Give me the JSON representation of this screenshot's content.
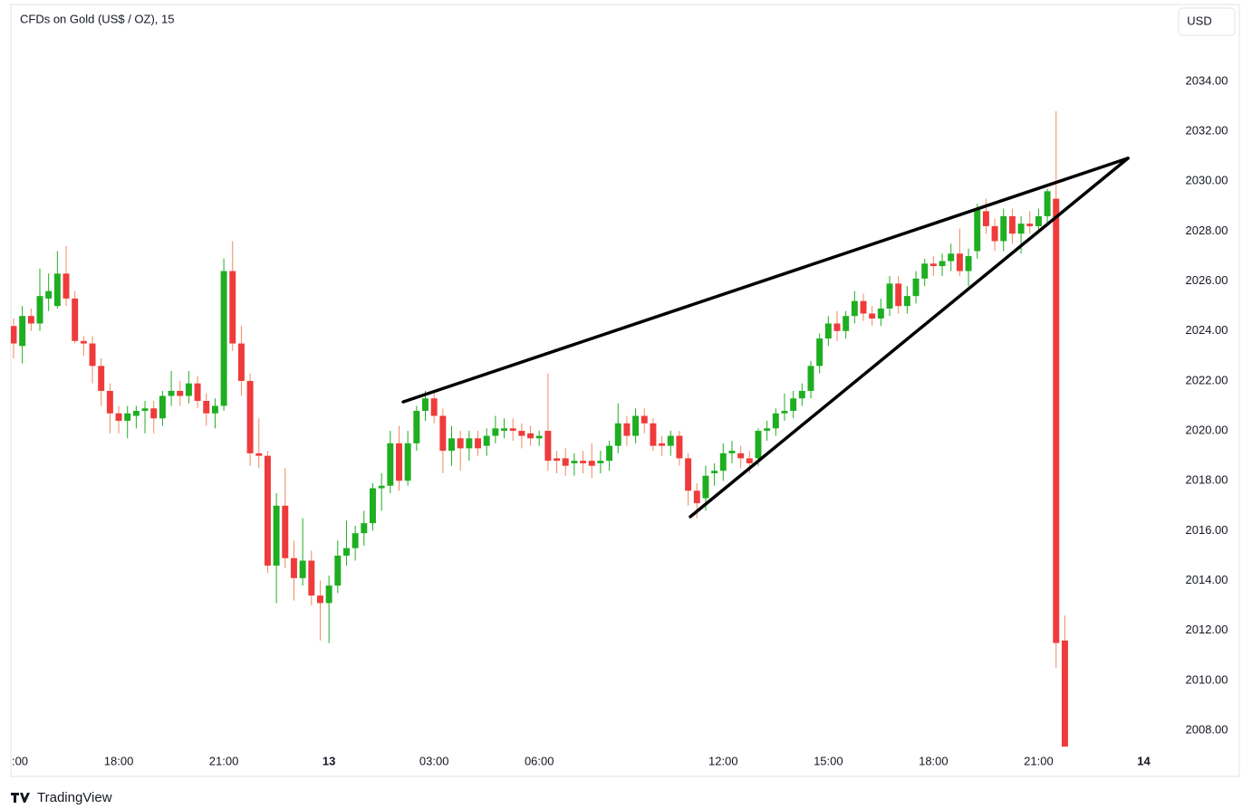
{
  "chart_data": {
    "type": "candlestick",
    "title": "CFDs on Gold (US$ / OZ), 15",
    "currency": "USD",
    "brand": "TradingView",
    "up_color": "#1fae22",
    "down_color": "#ef3b3b",
    "down_wick_color": "#f08a5d",
    "open": [
      2024.2,
      2023.4,
      2024.6,
      2024.3,
      2025.3,
      2025.0,
      2026.3,
      2025.3,
      2023.6,
      2023.5,
      2022.6,
      2021.6,
      2020.7,
      2020.4,
      2020.6,
      2020.8,
      2020.9,
      2020.5,
      2021.4,
      2021.6,
      2021.4,
      2021.9,
      2021.2,
      2020.7,
      2021.0,
      2026.4,
      2023.5,
      2022.0,
      2019.1,
      2019.0,
      2014.6,
      2017.0,
      2014.9,
      2014.1,
      2014.8,
      2013.4,
      2013.1,
      2013.8,
      2015.0,
      2015.3,
      2015.9,
      2016.3,
      2017.7,
      2017.8,
      2019.5,
      2018.0,
      2019.5,
      2020.8,
      2021.3,
      2020.6,
      2019.2,
      2019.7,
      2019.3,
      2019.7,
      2019.4,
      2019.8,
      2020.0,
      2020.1,
      2020.0,
      2019.9,
      2019.7,
      2020.0,
      2018.9,
      2018.9,
      2018.7,
      2018.8,
      2018.8,
      2018.7,
      2018.8,
      2019.4,
      2020.3,
      2019.8,
      2020.6,
      2020.3,
      2019.5,
      2019.4,
      2019.8,
      2018.9,
      2017.6,
      2017.3,
      2018.3,
      2018.4,
      2019.1,
      2019.1,
      2018.9,
      2018.9,
      2020.0,
      2020.1,
      2020.7,
      2020.8,
      2021.3,
      2021.6,
      2022.6,
      2023.7,
      2024.3,
      2024.0,
      2024.6,
      2025.2,
      2024.7,
      2024.5,
      2024.9,
      2025.9,
      2025.0,
      2025.4,
      2026.1,
      2026.7,
      2026.6,
      2026.8,
      2027.1,
      2026.4,
      2027.2,
      2028.8,
      2028.2,
      2027.6,
      2028.6,
      2027.9,
      2028.3,
      2028.2,
      2028.6,
      2029.3,
      2011.6
    ],
    "high": [
      2024.5,
      2025.0,
      2024.9,
      2026.5,
      2026.3,
      2027.2,
      2027.4,
      2025.6,
      2023.8,
      2023.8,
      2022.9,
      2021.9,
      2021.0,
      2021.0,
      2021.0,
      2021.2,
      2021.2,
      2021.6,
      2022.4,
      2022.0,
      2022.4,
      2022.2,
      2021.5,
      2021.3,
      2026.9,
      2027.6,
      2024.2,
      2022.3,
      2020.5,
      2019.2,
      2017.5,
      2018.5,
      2015.6,
      2016.5,
      2015.2,
      2014.0,
      2014.2,
      2015.6,
      2016.4,
      2016.2,
      2016.8,
      2017.9,
      2018.3,
      2020.0,
      2020.2,
      2020.0,
      2021.0,
      2021.6,
      2021.6,
      2020.9,
      2020.2,
      2020.0,
      2020.0,
      2020.0,
      2020.1,
      2020.6,
      2020.5,
      2020.5,
      2020.3,
      2020.2,
      2020.0,
      2022.3,
      2019.2,
      2019.3,
      2019.1,
      2019.2,
      2019.5,
      2019.2,
      2019.6,
      2021.1,
      2020.6,
      2020.9,
      2020.9,
      2020.5,
      2019.8,
      2020.0,
      2020.0,
      2019.1,
      2017.9,
      2018.6,
      2018.7,
      2019.5,
      2019.6,
      2019.4,
      2019.2,
      2020.1,
      2020.4,
      2020.9,
      2021.5,
      2021.6,
      2021.9,
      2022.8,
      2023.9,
      2024.6,
      2024.8,
      2024.8,
      2025.6,
      2025.5,
      2025.0,
      2025.3,
      2026.2,
      2026.2,
      2025.8,
      2026.4,
      2026.9,
      2027.0,
      2027.1,
      2027.5,
      2028.1,
      2027.3,
      2029.1,
      2029.3,
      2028.5,
      2028.9,
      2028.9,
      2028.6,
      2028.8,
      2028.9,
      2029.7,
      2032.8,
      2012.6
    ],
    "low": [
      2022.9,
      2022.7,
      2024.0,
      2024.0,
      2024.8,
      2024.9,
      2025.0,
      2023.5,
      2023.0,
      2021.9,
      2021.0,
      2019.9,
      2019.9,
      2019.7,
      2020.1,
      2019.9,
      2019.9,
      2020.2,
      2021.0,
      2021.0,
      2021.1,
      2020.9,
      2020.2,
      2020.1,
      2020.8,
      2023.2,
      2021.4,
      2018.6,
      2018.5,
      2014.3,
      2013.1,
      2014.5,
      2013.2,
      2013.8,
      2013.0,
      2011.6,
      2011.5,
      2013.5,
      2014.6,
      2014.8,
      2015.4,
      2016.0,
      2016.8,
      2017.5,
      2017.6,
      2017.8,
      2019.2,
      2020.4,
      2020.3,
      2018.3,
      2018.6,
      2018.4,
      2018.8,
      2019.0,
      2019.0,
      2019.5,
      2019.7,
      2019.6,
      2019.3,
      2019.4,
      2019.4,
      2018.4,
      2018.3,
      2018.2,
      2018.2,
      2018.3,
      2018.1,
      2018.3,
      2018.4,
      2019.1,
      2019.4,
      2019.5,
      2019.9,
      2019.2,
      2019.0,
      2019.0,
      2018.6,
      2017.0,
      2016.5,
      2016.8,
      2017.8,
      2018.0,
      2018.7,
      2018.5,
      2018.3,
      2018.6,
      2019.6,
      2019.8,
      2020.4,
      2020.5,
      2021.0,
      2021.3,
      2022.3,
      2023.4,
      2023.6,
      2023.7,
      2024.3,
      2024.4,
      2024.2,
      2024.2,
      2024.6,
      2024.7,
      2024.7,
      2025.1,
      2025.8,
      2026.2,
      2026.2,
      2026.4,
      2026.2,
      2025.8,
      2026.9,
      2027.9,
      2027.2,
      2027.2,
      2027.5,
      2027.1,
      2027.9,
      2027.9,
      2028.3,
      2010.5,
      2007.3
    ],
    "close": [
      2023.5,
      2024.6,
      2024.3,
      2025.4,
      2025.6,
      2026.3,
      2025.3,
      2023.6,
      2023.5,
      2022.6,
      2021.6,
      2020.7,
      2020.4,
      2020.7,
      2020.8,
      2020.9,
      2020.5,
      2021.4,
      2021.6,
      2021.4,
      2021.9,
      2021.2,
      2020.7,
      2021.0,
      2026.4,
      2023.5,
      2022.0,
      2019.1,
      2019.0,
      2014.6,
      2017.0,
      2014.9,
      2014.1,
      2014.8,
      2013.4,
      2013.1,
      2013.8,
      2015.0,
      2015.3,
      2015.9,
      2016.3,
      2017.7,
      2017.8,
      2019.5,
      2018.0,
      2019.5,
      2020.8,
      2021.3,
      2020.6,
      2019.2,
      2019.7,
      2019.3,
      2019.7,
      2019.3,
      2019.8,
      2020.1,
      2020.1,
      2020.0,
      2019.8,
      2019.7,
      2019.8,
      2018.8,
      2018.8,
      2018.6,
      2018.8,
      2018.7,
      2018.6,
      2018.8,
      2019.4,
      2020.3,
      2019.8,
      2020.6,
      2020.3,
      2019.4,
      2019.4,
      2019.8,
      2018.9,
      2017.6,
      2017.1,
      2018.2,
      2018.4,
      2019.1,
      2019.2,
      2018.9,
      2018.7,
      2020.0,
      2020.1,
      2020.7,
      2020.8,
      2021.3,
      2021.6,
      2022.6,
      2023.7,
      2024.3,
      2024.0,
      2024.6,
      2025.2,
      2024.7,
      2024.5,
      2024.9,
      2025.9,
      2025.0,
      2025.4,
      2026.1,
      2026.7,
      2026.6,
      2026.8,
      2027.1,
      2026.4,
      2027.0,
      2028.9,
      2028.2,
      2027.6,
      2028.6,
      2027.9,
      2028.3,
      2028.2,
      2028.6,
      2029.6,
      2011.5,
      2007.3
    ],
    "xlim": [
      -0.31,
      131.33
    ],
    "xticks": [
      {
        "value": 0,
        "label": ":00"
      },
      {
        "value": 12,
        "label": "18:00"
      },
      {
        "value": 24,
        "label": "21:00"
      },
      {
        "value": 36,
        "label": "13"
      },
      {
        "value": 48,
        "label": "03:00"
      },
      {
        "value": 60,
        "label": "06:00"
      },
      {
        "value": 81,
        "label": "12:00"
      },
      {
        "value": 93,
        "label": "15:00"
      },
      {
        "value": 105,
        "label": "18:00"
      },
      {
        "value": 117,
        "label": "21:00"
      },
      {
        "value": 129,
        "label": "14"
      }
    ],
    "ylim": [
      2007.35,
      2037.08
    ],
    "yticks": [
      {
        "value": 2008,
        "label": "2008.00"
      },
      {
        "value": 2010,
        "label": "2010.00"
      },
      {
        "value": 2012,
        "label": "2012.00"
      },
      {
        "value": 2014,
        "label": "2014.00"
      },
      {
        "value": 2016,
        "label": "2016.00"
      },
      {
        "value": 2018,
        "label": "2018.00"
      },
      {
        "value": 2020,
        "label": "2020.00"
      },
      {
        "value": 2022,
        "label": "2022.00"
      },
      {
        "value": 2024,
        "label": "2024.00"
      },
      {
        "value": 2026,
        "label": "2026.00"
      },
      {
        "value": 2028,
        "label": "2028.00"
      },
      {
        "value": 2030,
        "label": "2030.00"
      },
      {
        "value": 2032,
        "label": "2032.00"
      },
      {
        "value": 2034,
        "label": "2034.00"
      }
    ],
    "grid": false,
    "trendlines": [
      {
        "x": [
          44.47,
          127.2
        ],
        "y": [
          2021.16,
          2030.92
        ]
      },
      {
        "x": [
          77.25,
          127.2
        ],
        "y": [
          2016.56,
          2030.92
        ]
      }
    ]
  }
}
